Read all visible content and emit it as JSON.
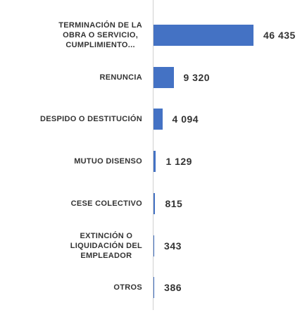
{
  "chart_data": {
    "type": "bar",
    "orientation": "horizontal",
    "categories": [
      "TERMINACIÓN DE LA\nOBRA O SERVICIO,\nCUMPLIMIENTO...",
      "RENUNCIA",
      "DESPIDO O DESTITUCIÓN",
      "MUTUO DISENSO",
      "CESE COLECTIVO",
      "EXTINCIÓN O\nLIQUIDACIÓN DEL\nEMPLEADOR",
      "OTROS"
    ],
    "values": [
      46435,
      9320,
      4094,
      1129,
      815,
      343,
      386
    ],
    "value_labels": [
      "46 435",
      "9 320",
      "4 094",
      "1 129",
      "815",
      "343",
      "386"
    ],
    "color": "#4472c4"
  }
}
